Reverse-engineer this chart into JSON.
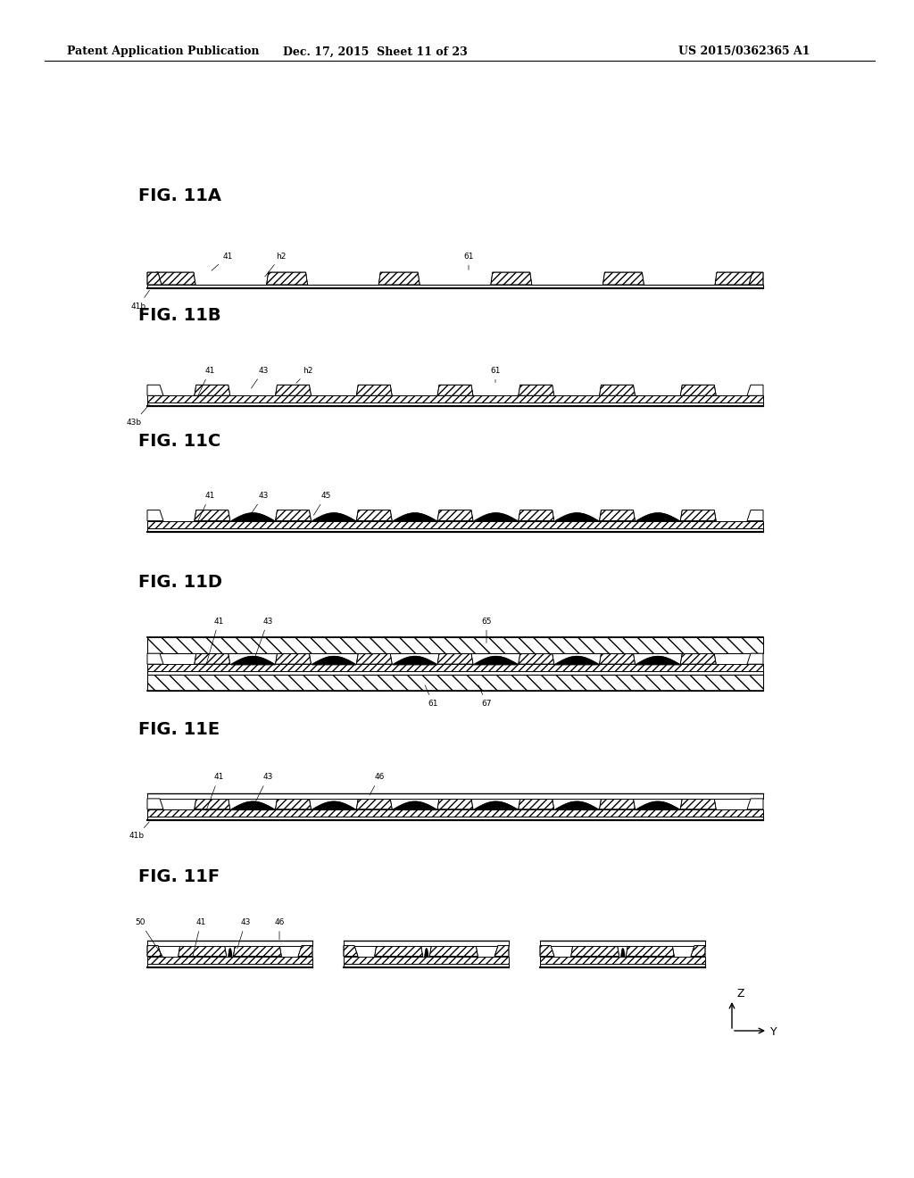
{
  "background_color": "#ffffff",
  "header_left": "Patent Application Publication",
  "header_mid": "Dec. 17, 2015  Sheet 11 of 23",
  "header_right": "US 2015/0362365 A1",
  "line_color": "#000000",
  "fig_label_fontsize": 14,
  "header_fontsize": 9,
  "annot_fontsize": 6.5,
  "fig_ycs": {
    "A": 0.845,
    "B": 0.735,
    "C": 0.62,
    "D": 0.49,
    "E": 0.355,
    "F": 0.22
  }
}
